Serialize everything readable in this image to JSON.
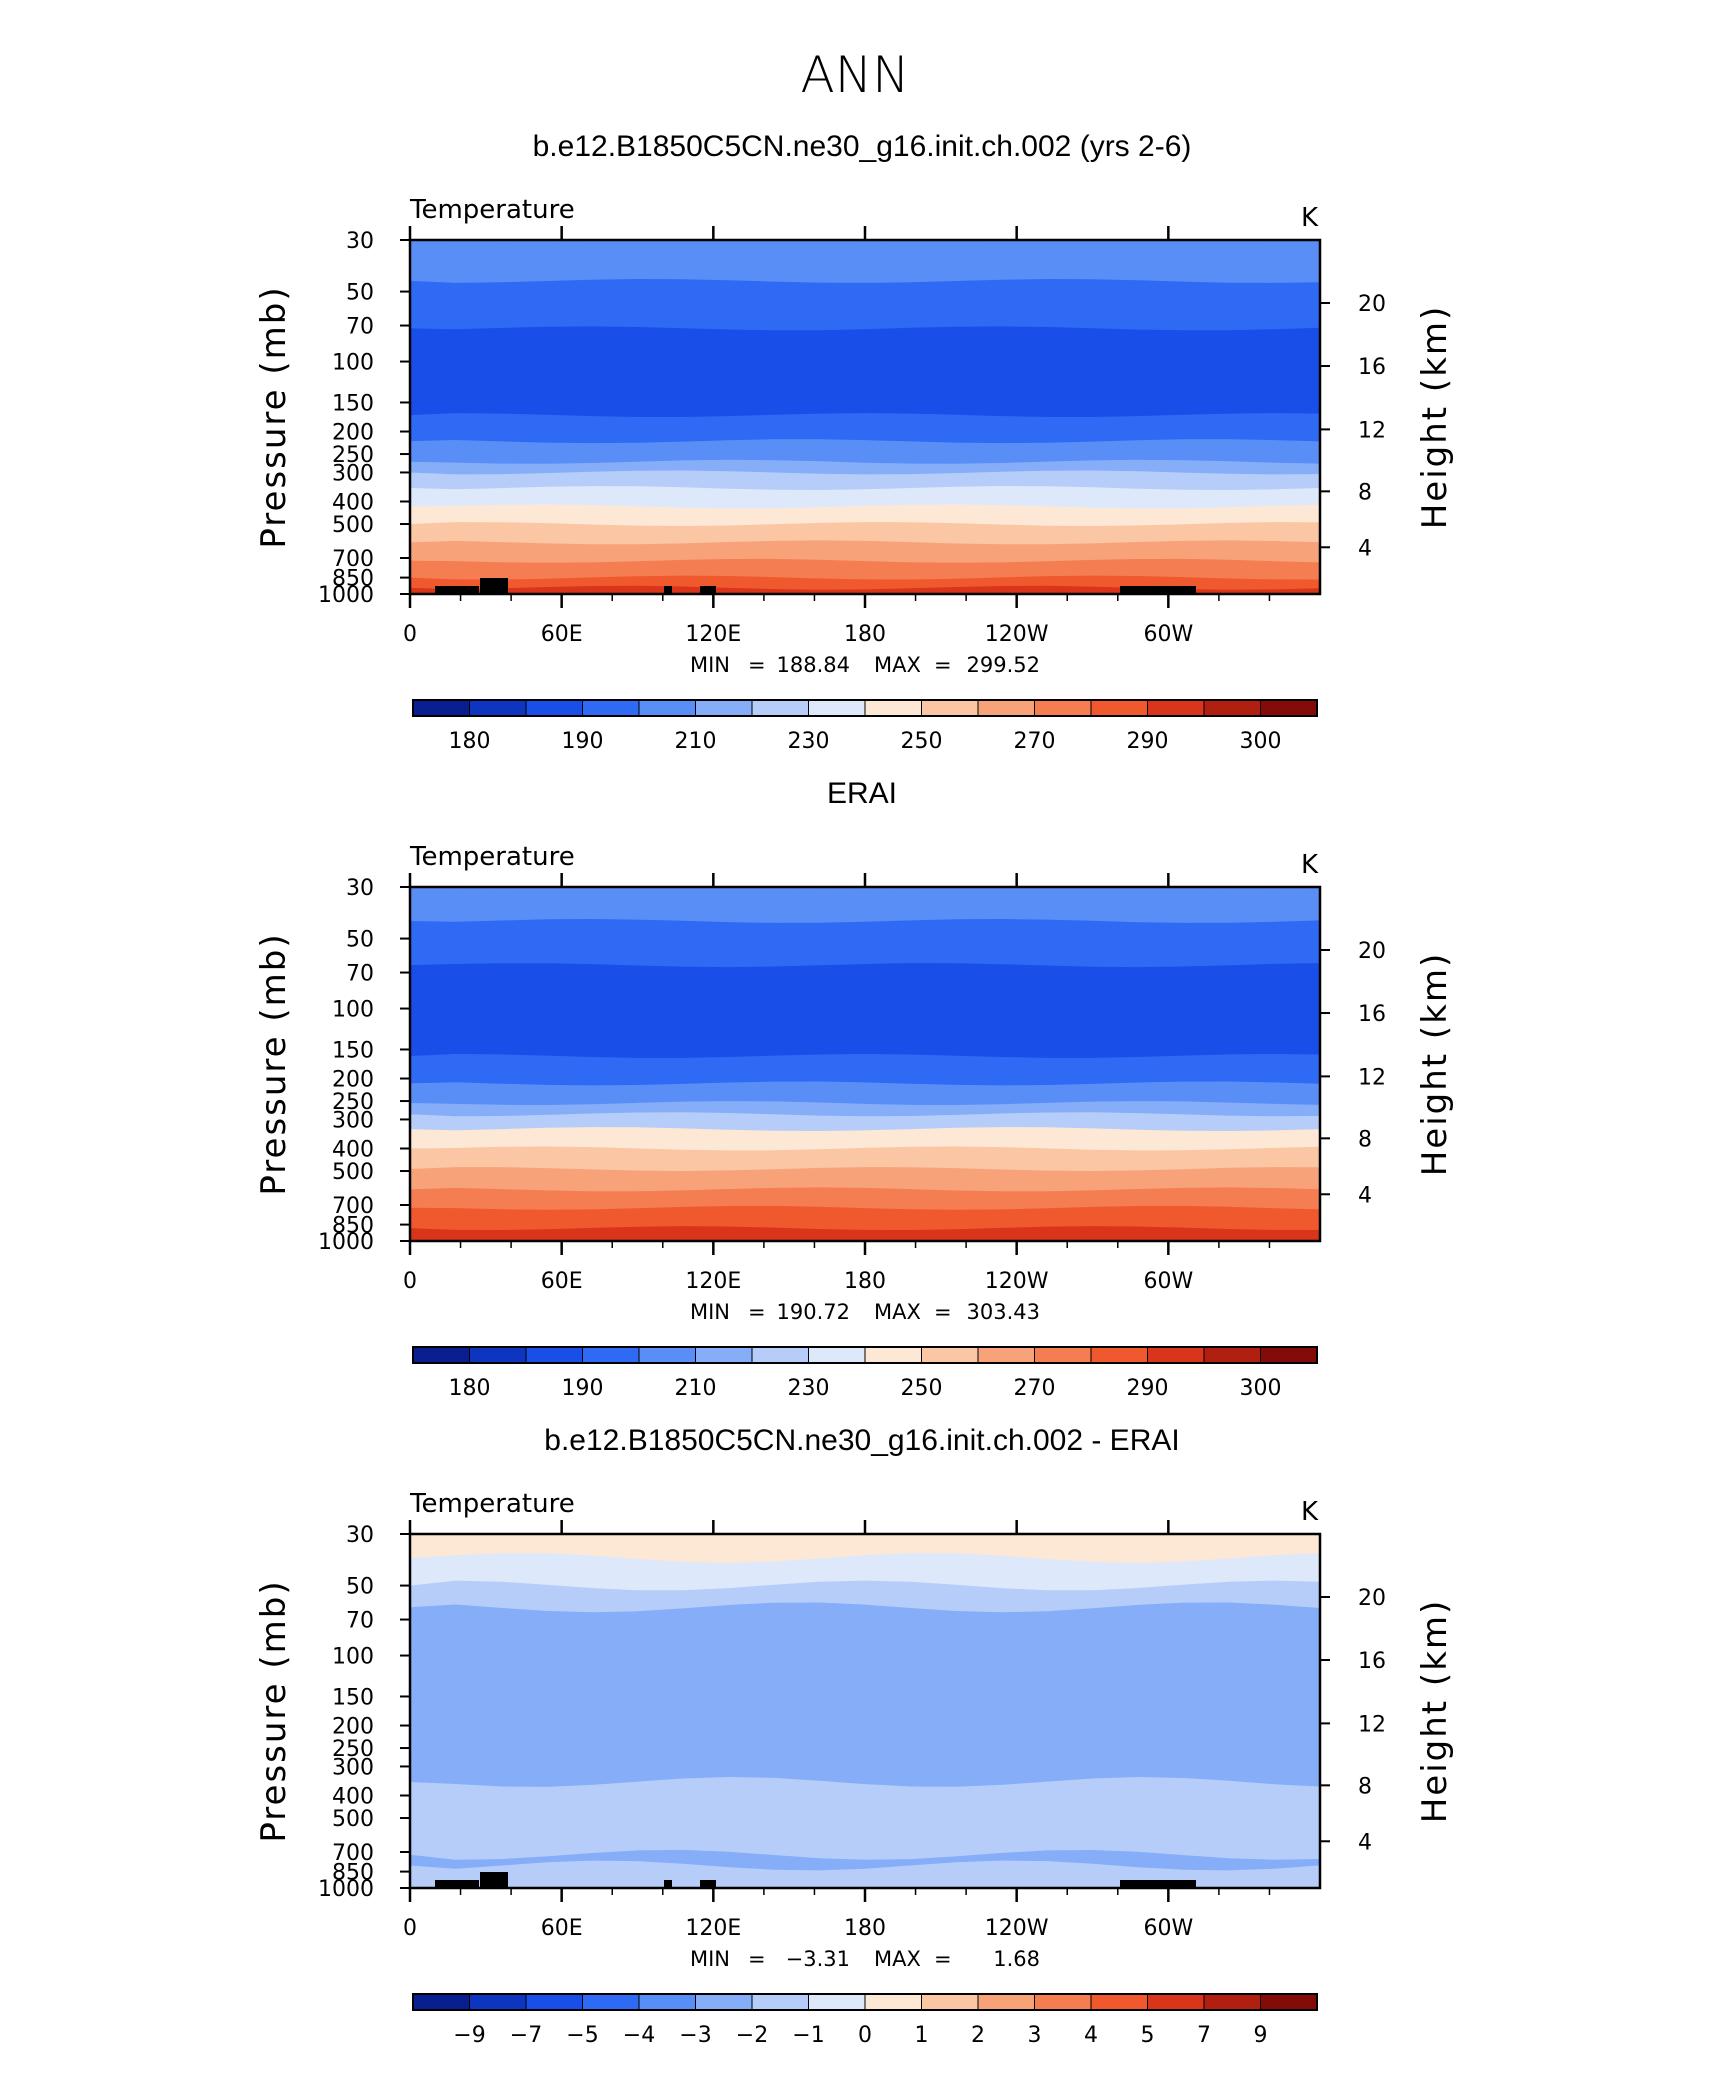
{
  "suptitle": "ANN",
  "chart_data": [
    {
      "type": "heatmap",
      "title": "b.e12.B1850C5CN.ne30_g16.init.ch.002 (yrs 2-6)",
      "left_label": "Temperature",
      "units": "K",
      "ylabel": "Pressure  (mb)",
      "ylabel_right": "Height  (km)",
      "y_ticks": [
        "30",
        "50",
        "70",
        "100",
        "150",
        "200",
        "250",
        "300",
        "400",
        "500",
        "700",
        "850",
        "1000"
      ],
      "y_ticks_right": [
        "20",
        "16",
        "12",
        "8",
        "4"
      ],
      "x_ticks": [
        "0",
        "60E",
        "120E",
        "180",
        "120W",
        "60W"
      ],
      "stats": {
        "min_label": "MIN",
        "min": "188.84",
        "max_label": "MAX",
        "max": "299.52"
      },
      "colorbar_labels": [
        "180",
        "190",
        "210",
        "230",
        "250",
        "270",
        "290",
        "300"
      ],
      "colors": [
        "#0a1f8f",
        "#0e35c0",
        "#1a4ee8",
        "#2f6af5",
        "#5a8ef7",
        "#86adf8",
        "#b6cdf9",
        "#dde8fb",
        "#fde8d5",
        "#fbc6a4",
        "#f8a27a",
        "#f57d52",
        "#f0592e",
        "#d8351a",
        "#b01f10",
        "#840c08"
      ],
      "bands": [
        {
          "p": 30,
          "c": 4
        },
        {
          "p": 45,
          "c": 3
        },
        {
          "p": 72,
          "c": 2
        },
        {
          "p": 90,
          "c": 2
        },
        {
          "p": 170,
          "c": 3
        },
        {
          "p": 220,
          "c": 4
        },
        {
          "p": 270,
          "c": 5
        },
        {
          "p": 300,
          "c": 6
        },
        {
          "p": 350,
          "c": 7
        },
        {
          "p": 420,
          "c": 8
        },
        {
          "p": 500,
          "c": 9
        },
        {
          "p": 600,
          "c": 10
        },
        {
          "p": 720,
          "c": 11
        },
        {
          "p": 850,
          "c": 12
        },
        {
          "p": 940,
          "c": 13
        }
      ]
    },
    {
      "type": "heatmap",
      "title": "ERAI",
      "left_label": "Temperature",
      "units": "K",
      "ylabel": "Pressure  (mb)",
      "ylabel_right": "Height  (km)",
      "y_ticks": [
        "30",
        "50",
        "70",
        "100",
        "150",
        "200",
        "250",
        "300",
        "400",
        "500",
        "700",
        "850",
        "1000"
      ],
      "y_ticks_right": [
        "20",
        "16",
        "12",
        "8",
        "4"
      ],
      "x_ticks": [
        "0",
        "60E",
        "120E",
        "180",
        "120W",
        "60W"
      ],
      "stats": {
        "min_label": "MIN",
        "min": "190.72",
        "max_label": "MAX",
        "max": "303.43"
      },
      "colorbar_labels": [
        "180",
        "190",
        "210",
        "230",
        "250",
        "270",
        "290",
        "300"
      ],
      "colors": [
        "#0a1f8f",
        "#0e35c0",
        "#1a4ee8",
        "#2f6af5",
        "#5a8ef7",
        "#86adf8",
        "#b6cdf9",
        "#dde8fb",
        "#fde8d5",
        "#fbc6a4",
        "#f8a27a",
        "#f57d52",
        "#f0592e",
        "#d8351a",
        "#b01f10",
        "#840c08"
      ],
      "bands": [
        {
          "p": 30,
          "c": 4
        },
        {
          "p": 42,
          "c": 3
        },
        {
          "p": 65,
          "c": 2
        },
        {
          "p": 160,
          "c": 3
        },
        {
          "p": 210,
          "c": 4
        },
        {
          "p": 255,
          "c": 5
        },
        {
          "p": 285,
          "c": 6
        },
        {
          "p": 330,
          "c": 8
        },
        {
          "p": 400,
          "c": 9
        },
        {
          "p": 490,
          "c": 10
        },
        {
          "p": 600,
          "c": 11
        },
        {
          "p": 720,
          "c": 12
        },
        {
          "p": 880,
          "c": 13
        }
      ]
    },
    {
      "type": "heatmap",
      "title": "b.e12.B1850C5CN.ne30_g16.init.ch.002 - ERAI",
      "left_label": "Temperature",
      "units": "K",
      "ylabel": "Pressure  (mb)",
      "ylabel_right": "Height  (km)",
      "y_ticks": [
        "30",
        "50",
        "70",
        "100",
        "150",
        "200",
        "250",
        "300",
        "400",
        "500",
        "700",
        "850",
        "1000"
      ],
      "y_ticks_right": [
        "20",
        "16",
        "12",
        "8",
        "4"
      ],
      "x_ticks": [
        "0",
        "60E",
        "120E",
        "180",
        "120W",
        "60W"
      ],
      "stats": {
        "min_label": "MIN",
        "min": "−3.31",
        "max_label": "MAX",
        "max": "1.68"
      },
      "colorbar_labels": [
        "−9",
        "−7",
        "−5",
        "−4",
        "−3",
        "−2",
        "−1",
        "0",
        "1",
        "2",
        "3",
        "4",
        "5",
        "7",
        "9"
      ],
      "colors": [
        "#0a1f8f",
        "#0e35c0",
        "#1a4ee8",
        "#2f6af5",
        "#5a8ef7",
        "#86adf8",
        "#b6cdf9",
        "#dde8fb",
        "#fde8d5",
        "#fbc6a4",
        "#f8a27a",
        "#f57d52",
        "#f0592e",
        "#d8351a",
        "#b01f10",
        "#840c08"
      ],
      "bands": [
        {
          "p": 30,
          "c": 8
        },
        {
          "p": 38,
          "c": 7
        },
        {
          "p": 50,
          "c": 6
        },
        {
          "p": 62,
          "c": 5
        },
        {
          "p": 350,
          "c": 6
        },
        {
          "p": 720,
          "c": 5
        },
        {
          "p": 800,
          "c": 6
        }
      ]
    }
  ]
}
